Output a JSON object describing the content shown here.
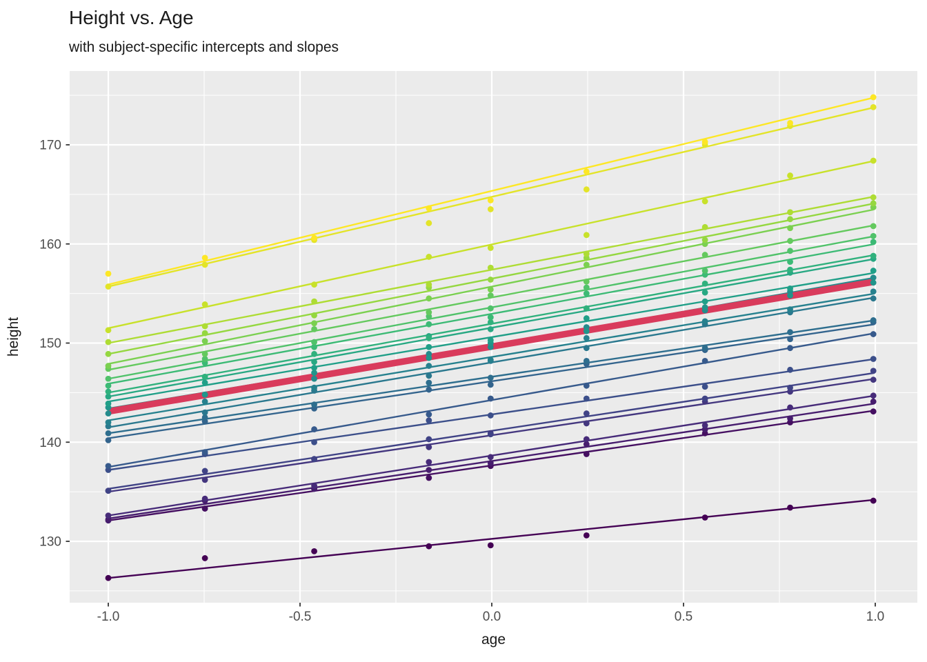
{
  "title": "Height vs. Age",
  "subtitle": "with subject-specific intercepts and slopes",
  "colors": {
    "panel_background": "#EBEBEB",
    "gridline": "#FFFFFF",
    "tick_mark": "#333333",
    "tick_label_text": "#4D4D4D",
    "axis_title_text": "#1A1A1A",
    "title_text": "#1A1A1A",
    "population_line": "#D93B5C"
  },
  "chart_data": {
    "type": "line",
    "title": "Height vs. Age",
    "subtitle": "with subject-specific intercepts and slopes",
    "xlabel": "age",
    "ylabel": "height",
    "xlim": [
      -1.1,
      1.11
    ],
    "ylim": [
      123.8,
      177.4
    ],
    "grid": "on",
    "legend": "none",
    "x_ticks": [
      -1.0,
      -0.5,
      0.0,
      0.5,
      1.0
    ],
    "x_tick_labels": [
      "-1.0",
      "-0.5",
      "0.0",
      "0.5",
      "1.0"
    ],
    "x_minor_ticks": [
      -0.75,
      -0.25,
      0.25,
      0.75
    ],
    "y_ticks": [
      130,
      140,
      150,
      160,
      170
    ],
    "y_tick_labels": [
      "130",
      "140",
      "150",
      "160",
      "170"
    ],
    "y_minor_ticks": [
      125,
      135,
      145,
      155,
      165,
      175
    ],
    "occasion_ages": [
      -1.0,
      -0.748,
      -0.463,
      -0.164,
      -0.003,
      0.247,
      0.556,
      0.778,
      0.995
    ],
    "population_line": {
      "color": "#D93B5C",
      "height_at_age_minus1": 143.1,
      "height_at_age_plus1": 156.2,
      "stroke_width": 9.5
    },
    "subjects": [
      {
        "id": 1,
        "color": "#440154",
        "line_start": 126.3,
        "line_end": 134.2,
        "heights": [
          126.3,
          128.3,
          129.0,
          129.5,
          129.6,
          130.6,
          132.4,
          133.4,
          134.1
        ]
      },
      {
        "id": 2,
        "color": "#450F61",
        "line_start": 132.1,
        "line_end": 143.2,
        "heights": [
          132.2,
          133.3,
          135.3,
          136.4,
          137.6,
          138.8,
          140.9,
          142.0,
          143.1
        ]
      },
      {
        "id": 3,
        "color": "#471D6E",
        "line_start": 132.3,
        "line_end": 143.9,
        "heights": [
          132.1,
          134.1,
          135.3,
          137.2,
          137.9,
          139.8,
          141.3,
          142.4,
          144.1
        ]
      },
      {
        "id": 4,
        "color": "#472B79",
        "line_start": 132.6,
        "line_end": 144.7,
        "heights": [
          132.6,
          134.3,
          135.6,
          138.0,
          138.5,
          140.3,
          141.7,
          143.5,
          144.7
        ]
      },
      {
        "id": 5,
        "color": "#44377F",
        "line_start": 135.0,
        "line_end": 146.4,
        "heights": [
          135.1,
          136.2,
          138.3,
          139.5,
          140.9,
          141.9,
          144.1,
          145.1,
          146.3
        ]
      },
      {
        "id": 6,
        "color": "#404386",
        "line_start": 135.3,
        "line_end": 147.0,
        "heights": [
          135.1,
          137.1,
          138.3,
          140.3,
          140.8,
          142.9,
          144.4,
          145.5,
          147.2
        ]
      },
      {
        "id": 7,
        "color": "#3C4F8A",
        "line_start": 137.2,
        "line_end": 148.4,
        "heights": [
          137.2,
          138.8,
          140.0,
          142.2,
          142.7,
          144.4,
          145.6,
          147.3,
          148.4
        ]
      },
      {
        "id": 8,
        "color": "#375A8C",
        "line_start": 137.5,
        "line_end": 151.0,
        "heights": [
          137.6,
          139.0,
          141.3,
          142.8,
          144.4,
          145.7,
          148.2,
          149.5,
          150.9
        ]
      },
      {
        "id": 9,
        "color": "#33648D",
        "line_start": 140.4,
        "line_end": 151.9,
        "heights": [
          140.2,
          142.1,
          143.4,
          145.3,
          145.8,
          147.9,
          149.3,
          150.4,
          152.1
        ]
      },
      {
        "id": 10,
        "color": "#2E6E8E",
        "line_start": 140.9,
        "line_end": 152.3,
        "heights": [
          140.9,
          142.5,
          143.8,
          146.0,
          146.5,
          148.2,
          149.5,
          151.1,
          152.3
        ]
      },
      {
        "id": 11,
        "color": "#2A788E",
        "line_start": 141.5,
        "line_end": 154.6,
        "heights": [
          141.6,
          143.0,
          145.2,
          146.7,
          148.2,
          149.5,
          151.9,
          153.1,
          154.5
        ]
      },
      {
        "id": 12,
        "color": "#26818E",
        "line_start": 142.2,
        "line_end": 155.0,
        "heights": [
          142.0,
          144.1,
          145.5,
          147.7,
          148.3,
          150.5,
          152.2,
          153.4,
          155.2
        ]
      },
      {
        "id": 13,
        "color": "#248B8C",
        "line_start": 142.9,
        "line_end": 156.6,
        "heights": [
          142.9,
          144.8,
          146.4,
          148.9,
          149.6,
          151.6,
          153.3,
          155.2,
          156.6
        ]
      },
      {
        "id": 14,
        "color": "#21958B",
        "line_start": 143.4,
        "line_end": 156.2,
        "heights": [
          143.5,
          144.8,
          147.0,
          148.5,
          150.0,
          151.2,
          153.6,
          154.8,
          156.1
        ]
      },
      {
        "id": 15,
        "color": "#209F88",
        "line_start": 144.1,
        "line_end": 157.1,
        "heights": [
          143.9,
          146.0,
          147.5,
          149.6,
          150.3,
          152.5,
          154.2,
          155.5,
          157.3
        ]
      },
      {
        "id": 16,
        "color": "#28A883",
        "line_start": 144.6,
        "line_end": 158.5,
        "heights": [
          144.6,
          146.6,
          148.1,
          150.7,
          151.4,
          153.5,
          155.1,
          157.1,
          158.5
        ]
      },
      {
        "id": 17,
        "color": "#30B17D",
        "line_start": 145.0,
        "line_end": 158.9,
        "heights": [
          145.1,
          146.6,
          148.9,
          150.5,
          152.1,
          153.5,
          156.0,
          157.4,
          158.8
        ]
      },
      {
        "id": 18,
        "color": "#3CBA75",
        "line_start": 145.9,
        "line_end": 160.0,
        "heights": [
          145.7,
          148.0,
          149.6,
          151.9,
          152.6,
          155.0,
          156.9,
          158.2,
          160.2
        ]
      },
      {
        "id": 19,
        "color": "#50C26A",
        "line_start": 146.4,
        "line_end": 160.8,
        "heights": [
          146.4,
          148.4,
          150.1,
          152.7,
          153.5,
          155.6,
          157.3,
          159.3,
          160.8
        ]
      },
      {
        "id": 20,
        "color": "#64C95E",
        "line_start": 147.3,
        "line_end": 161.9,
        "heights": [
          147.4,
          148.9,
          151.4,
          153.1,
          154.8,
          156.2,
          158.9,
          160.3,
          161.8
        ]
      },
      {
        "id": 21,
        "color": "#7BD050",
        "line_start": 147.9,
        "line_end": 163.5,
        "heights": [
          147.7,
          150.2,
          152.0,
          154.5,
          155.4,
          157.9,
          160.0,
          161.6,
          163.7
        ]
      },
      {
        "id": 22,
        "color": "#95D740",
        "line_start": 148.9,
        "line_end": 164.1,
        "heights": [
          148.9,
          151.0,
          152.8,
          155.6,
          156.4,
          158.6,
          160.4,
          162.5,
          164.1
        ]
      },
      {
        "id": 23,
        "color": "#AEDC34",
        "line_start": 150.0,
        "line_end": 164.8,
        "heights": [
          150.1,
          151.7,
          154.2,
          155.9,
          157.6,
          159.0,
          161.7,
          163.2,
          164.7
        ]
      },
      {
        "id": 24,
        "color": "#C8E12A",
        "line_start": 151.5,
        "line_end": 168.4,
        "heights": [
          151.3,
          153.9,
          155.9,
          158.7,
          159.6,
          160.9,
          164.3,
          166.9,
          168.4
        ]
      },
      {
        "id": 25,
        "color": "#E3E428",
        "line_start": 155.7,
        "line_end": 173.8,
        "heights": [
          155.7,
          157.9,
          160.4,
          162.1,
          163.5,
          165.5,
          170.0,
          171.9,
          173.8
        ]
      },
      {
        "id": 26,
        "color": "#FDE725",
        "line_start": 155.9,
        "line_end": 174.8,
        "heights": [
          157.0,
          158.6,
          160.6,
          163.6,
          164.4,
          167.3,
          170.3,
          172.2,
          174.8
        ]
      }
    ]
  },
  "x_axis": {
    "label": "age"
  },
  "y_axis": {
    "label": "height"
  }
}
